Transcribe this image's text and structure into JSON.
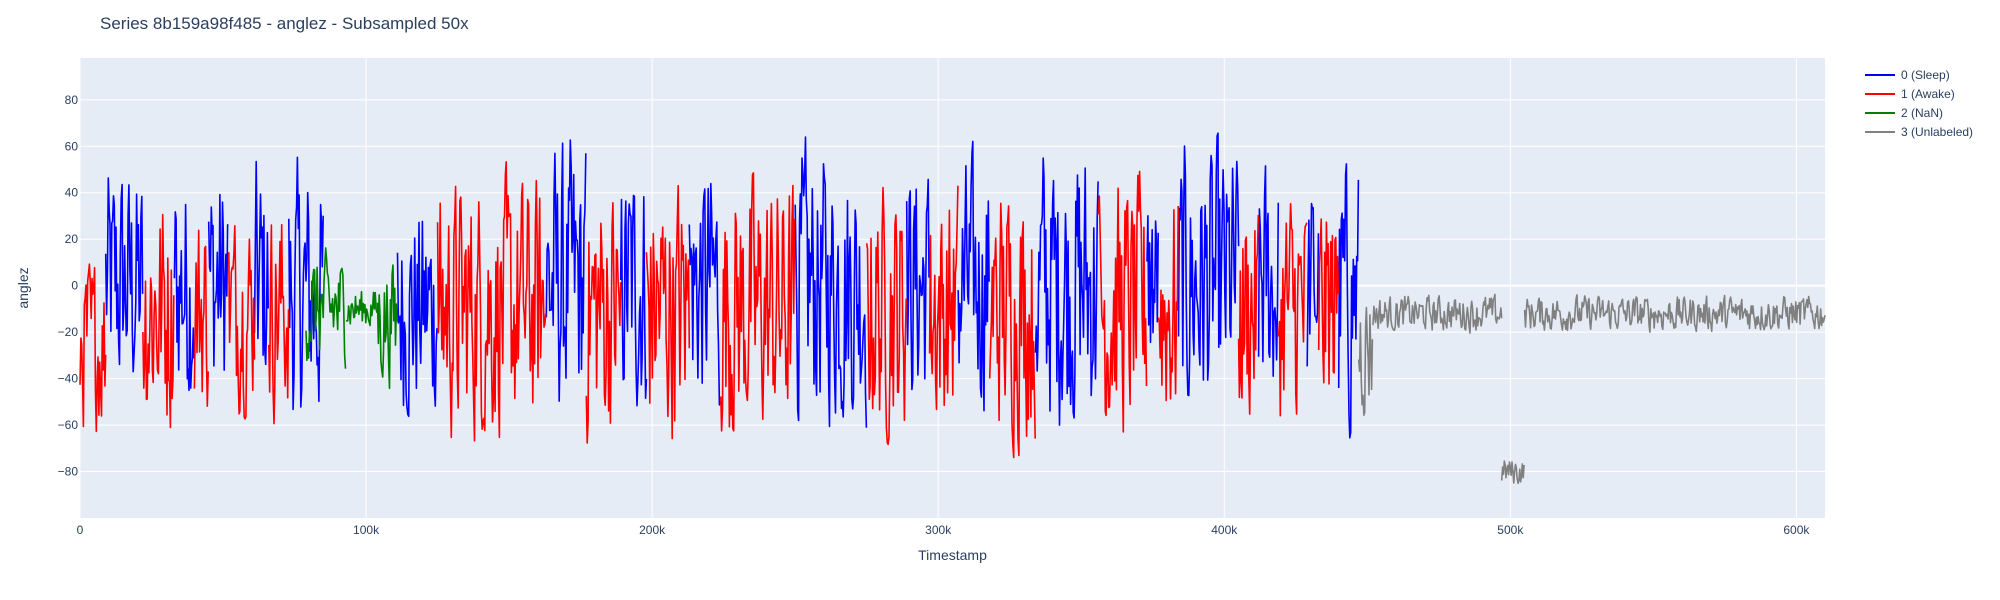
{
  "chart_data": {
    "type": "line",
    "title": "Series 8b159a98f485 - anglez - Subsampled 50x",
    "xlabel": "Timestamp",
    "ylabel": "anglez",
    "xlim": [
      0,
      610000
    ],
    "ylim": [
      -100,
      98
    ],
    "x_ticks": [
      0,
      100000,
      200000,
      300000,
      400000,
      500000,
      600000
    ],
    "x_tick_labels": [
      "0",
      "100k",
      "200k",
      "300k",
      "400k",
      "500k",
      "600k"
    ],
    "y_ticks": [
      -80,
      -60,
      -40,
      -20,
      0,
      20,
      40,
      60,
      80
    ],
    "y_tick_labels": [
      "−80",
      "−60",
      "−40",
      "−20",
      "0",
      "20",
      "40",
      "60",
      "80"
    ],
    "grid": true,
    "legend_position": "top-right",
    "colors": {
      "plot_bg": "#E5ECF6",
      "grid": "#FFFFFF",
      "text": "#2a3f5f"
    },
    "series": [
      {
        "name": "0 (Sleep)",
        "color": "#0000FF",
        "segments": [
          {
            "x": [
              9000,
              22000
            ],
            "amp": 68,
            "center": 0
          },
          {
            "x": [
              33000,
              40000
            ],
            "amp": 68,
            "center": 0
          },
          {
            "x": [
              45000,
              52000
            ],
            "amp": 70,
            "center": 0
          },
          {
            "x": [
              61000,
              66000
            ],
            "amp": 72,
            "center": 0
          },
          {
            "x": [
              73000,
              85000
            ],
            "amp": 72,
            "center": -5
          },
          {
            "x": [
              111000,
              125000
            ],
            "amp": 62,
            "center": -10
          },
          {
            "x": [
              163000,
              177000
            ],
            "amp": 78,
            "center": 0
          },
          {
            "x": [
              189000,
              198000
            ],
            "amp": 72,
            "center": 0
          },
          {
            "x": [
              213000,
              224000
            ],
            "amp": 72,
            "center": 0
          },
          {
            "x": [
              250000,
              275000
            ],
            "amp": 76,
            "center": 0
          },
          {
            "x": [
              289000,
              297000
            ],
            "amp": 70,
            "center": 0
          },
          {
            "x": [
              307000,
              318000
            ],
            "amp": 70,
            "center": 0
          },
          {
            "x": [
              334000,
              356000
            ],
            "amp": 80,
            "center": 0
          },
          {
            "x": [
              373000,
              377000
            ],
            "amp": 60,
            "center": 0
          },
          {
            "x": [
              384000,
              405000
            ],
            "amp": 78,
            "center": 0
          },
          {
            "x": [
              412000,
              419000
            ],
            "amp": 70,
            "center": 0
          },
          {
            "x": [
              429000,
              433000
            ],
            "amp": 60,
            "center": 0
          },
          {
            "x": [
              440000,
              447000
            ],
            "amp": 78,
            "center": -5
          }
        ]
      },
      {
        "name": "1 (Awake)",
        "color": "#FF0000",
        "segments": [
          {
            "x": [
              0,
              9000
            ],
            "amp": 48,
            "center": -25
          },
          {
            "x": [
              22000,
              33000
            ],
            "amp": 70,
            "center": -10
          },
          {
            "x": [
              40000,
              45000
            ],
            "amp": 60,
            "center": -10
          },
          {
            "x": [
              52000,
              61000
            ],
            "amp": 55,
            "center": -10
          },
          {
            "x": [
              66000,
              73000
            ],
            "amp": 60,
            "center": -10
          },
          {
            "x": [
              125000,
              163000
            ],
            "amp": 72,
            "center": -10
          },
          {
            "x": [
              177000,
              189000
            ],
            "amp": 74,
            "center": -10
          },
          {
            "x": [
              198000,
              213000
            ],
            "amp": 74,
            "center": -10
          },
          {
            "x": [
              224000,
              250000
            ],
            "amp": 74,
            "center": -10
          },
          {
            "x": [
              275000,
              289000
            ],
            "amp": 70,
            "center": -10
          },
          {
            "x": [
              297000,
              307000
            ],
            "amp": 70,
            "center": -10
          },
          {
            "x": [
              318000,
              334000
            ],
            "amp": 72,
            "center": -10
          },
          {
            "x": [
              356000,
              373000
            ],
            "amp": 72,
            "center": -10
          },
          {
            "x": [
              377000,
              384000
            ],
            "amp": 70,
            "center": -10
          },
          {
            "x": [
              405000,
              412000
            ],
            "amp": 68,
            "center": -10
          },
          {
            "x": [
              419000,
              429000
            ],
            "amp": 68,
            "center": -10
          },
          {
            "x": [
              433000,
              440000
            ],
            "amp": 68,
            "center": -10
          }
        ]
      },
      {
        "name": "2 (NaN)",
        "color": "#008000",
        "segments": [
          {
            "x": [
              79000,
              93000
            ],
            "amp": 30,
            "center": -10
          },
          {
            "x": [
              93000,
              104000
            ],
            "amp": 12,
            "center": -10
          },
          {
            "x": [
              104000,
              111000
            ],
            "amp": 35,
            "center": -15
          }
        ]
      },
      {
        "name": "3 (Unlabeled)",
        "color": "#808080",
        "segments": [
          {
            "x": [
              447000,
              452000
            ],
            "amp": 40,
            "center": -25
          },
          {
            "x": [
              452000,
              497000
            ],
            "amp": 10,
            "center": -12
          },
          {
            "x": [
              497000,
              505000
            ],
            "amp": 8,
            "center": -80
          },
          {
            "x": [
              505000,
              610000
            ],
            "amp": 10,
            "center": -12
          }
        ]
      }
    ]
  }
}
